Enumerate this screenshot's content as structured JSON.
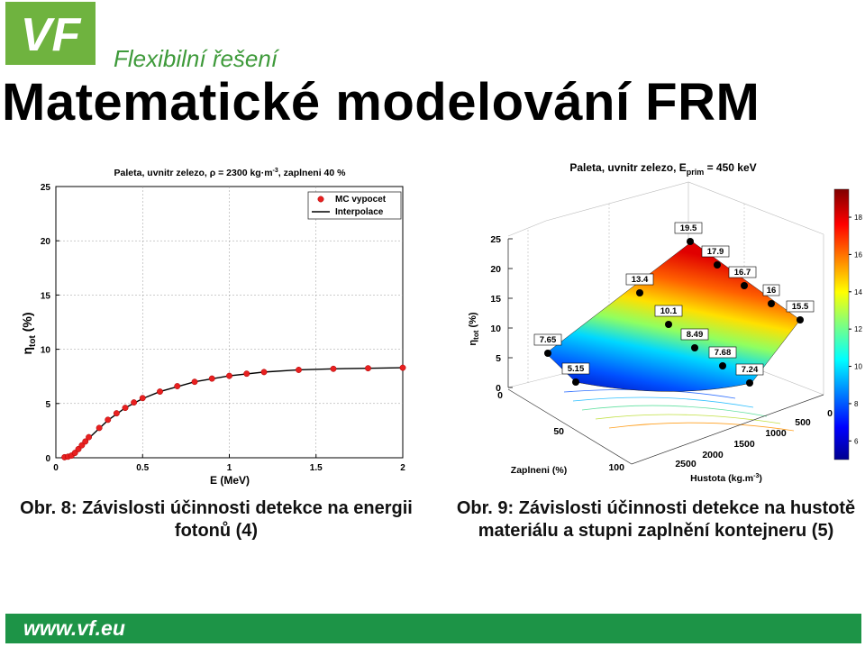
{
  "header": {
    "logo_text": "VF",
    "tagline": "Flexibilní řešení",
    "title": "Matematické modelování FRM"
  },
  "colors": {
    "brand_green": "#1d9447",
    "logo_green": "#6fb33f",
    "marker": "#e82020"
  },
  "chart_data": [
    {
      "type": "line",
      "title": "Paleta, uvnitr zelezo, ρ = 2300 kg·m",
      "title_sup": "-3",
      "title_tail": ", zaplneni 40 %",
      "xlabel": "E (MeV)",
      "ylabel": "η",
      "ylabel_sub": "tot",
      "ylabel_tail": " (%)",
      "xlim": [
        0,
        2
      ],
      "ylim": [
        0,
        25
      ],
      "xticks": [
        "0",
        "0.5",
        "1",
        "1.5",
        "2"
      ],
      "yticks": [
        "0",
        "5",
        "10",
        "15",
        "20",
        "25"
      ],
      "grid": true,
      "legend_position": "top-right",
      "series": [
        {
          "name": "MC vypocet",
          "style": "markers",
          "x": [
            0.05,
            0.07,
            0.09,
            0.11,
            0.13,
            0.15,
            0.17,
            0.19,
            0.25,
            0.3,
            0.35,
            0.4,
            0.45,
            0.5,
            0.6,
            0.7,
            0.8,
            0.9,
            1.0,
            1.1,
            1.2,
            1.4,
            1.6,
            1.8,
            2.0
          ],
          "y": [
            0.05,
            0.1,
            0.2,
            0.45,
            0.8,
            1.15,
            1.5,
            1.9,
            2.75,
            3.5,
            4.1,
            4.6,
            5.1,
            5.5,
            6.1,
            6.6,
            7.0,
            7.3,
            7.55,
            7.75,
            7.9,
            8.1,
            8.2,
            8.25,
            8.3
          ]
        },
        {
          "name": "Interpolace",
          "style": "line",
          "x": [
            0.05,
            0.1,
            0.15,
            0.2,
            0.3,
            0.4,
            0.5,
            0.6,
            0.8,
            1.0,
            1.2,
            1.4,
            1.6,
            1.8,
            2.0
          ],
          "y": [
            0.0,
            0.3,
            1.1,
            1.95,
            3.45,
            4.6,
            5.45,
            6.1,
            7.0,
            7.55,
            7.9,
            8.1,
            8.2,
            8.25,
            8.3
          ]
        }
      ]
    },
    {
      "type": "surface",
      "title": "Paleta, uvnitr zelezo, E",
      "title_sub": "prim",
      "title_tail": " = 450 keV",
      "zlabel": "η",
      "zlabel_sub": "tot",
      "zlabel_tail": " (%)",
      "xlabel": "Zaplneni (%)",
      "ylabel": "Hustota (kg.m",
      "ylabel_sup": "-3",
      "ylabel_tail": ")",
      "zticks": [
        "0",
        "5",
        "10",
        "15",
        "20",
        "25"
      ],
      "xticks": [
        "0",
        "50",
        "100"
      ],
      "yticks": [
        "0",
        "500",
        "1000",
        "1500",
        "2000",
        "2500"
      ],
      "colorbar_ticks": [
        "6",
        "8",
        "10",
        "12",
        "14",
        "16",
        "18"
      ],
      "points": [
        {
          "label": "19.5",
          "value": 19.5
        },
        {
          "label": "17.9",
          "value": 17.9
        },
        {
          "label": "16.7",
          "value": 16.7
        },
        {
          "label": "16",
          "value": 16
        },
        {
          "label": "15.5",
          "value": 15.5
        },
        {
          "label": "13.4",
          "value": 13.4
        },
        {
          "label": "10.1",
          "value": 10.1
        },
        {
          "label": "8.49",
          "value": 8.49
        },
        {
          "label": "7.68",
          "value": 7.68
        },
        {
          "label": "7.65",
          "value": 7.65
        },
        {
          "label": "7.24",
          "value": 7.24
        },
        {
          "label": "5.15",
          "value": 5.15
        }
      ]
    }
  ],
  "captions": {
    "fig8_line1": "Obr. 8: Závislosti účinnosti detekce na energii",
    "fig8_line2": "fotonů (4)",
    "fig9_line1": "Obr. 9: Závislosti účinnosti detekce na hustotě",
    "fig9_line2": "materiálu a stupni zaplnění kontejneru (5)"
  },
  "footer": {
    "url": "www.vf.eu"
  }
}
